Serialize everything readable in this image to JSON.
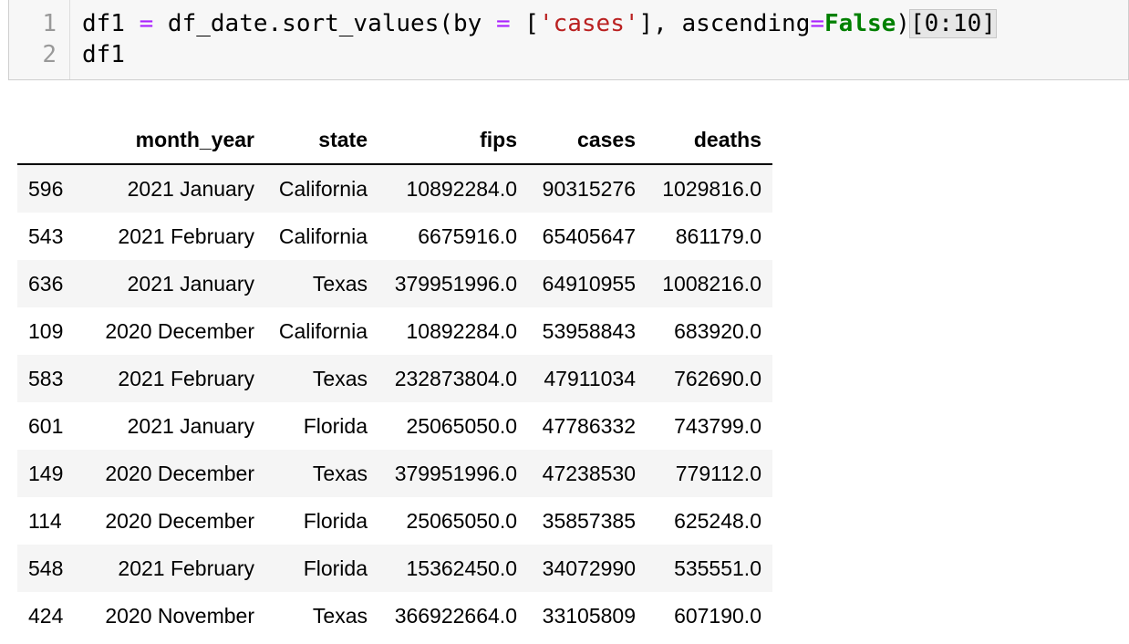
{
  "code": {
    "line_numbers": [
      "1",
      "2"
    ],
    "line1": {
      "t1": "df1 ",
      "t2": "=",
      "t3": " df_date.sort_values(by ",
      "t4": "=",
      "t5": " [",
      "t6": "'cases'",
      "t7": "], ascending",
      "t8": "=",
      "t9": "False",
      "t10": ")",
      "t11": "[0:10]"
    },
    "line2": "df1"
  },
  "table": {
    "headers": [
      "",
      "month_year",
      "state",
      "fips",
      "cases",
      "deaths"
    ],
    "rows": [
      [
        "596",
        "2021 January",
        "California",
        "10892284.0",
        "90315276",
        "1029816.0"
      ],
      [
        "543",
        "2021 February",
        "California",
        "6675916.0",
        "65405647",
        "861179.0"
      ],
      [
        "636",
        "2021 January",
        "Texas",
        "379951996.0",
        "64910955",
        "1008216.0"
      ],
      [
        "109",
        "2020 December",
        "California",
        "10892284.0",
        "53958843",
        "683920.0"
      ],
      [
        "583",
        "2021 February",
        "Texas",
        "232873804.0",
        "47911034",
        "762690.0"
      ],
      [
        "601",
        "2021 January",
        "Florida",
        "25065050.0",
        "47786332",
        "743799.0"
      ],
      [
        "149",
        "2020 December",
        "Texas",
        "379951996.0",
        "47238530",
        "779112.0"
      ],
      [
        "114",
        "2020 December",
        "Florida",
        "25065050.0",
        "35857385",
        "625248.0"
      ],
      [
        "548",
        "2021 February",
        "Florida",
        "15362450.0",
        "34072990",
        "535551.0"
      ],
      [
        "424",
        "2020 November",
        "Texas",
        "366922664.0",
        "33105809",
        "607190.0"
      ]
    ]
  }
}
